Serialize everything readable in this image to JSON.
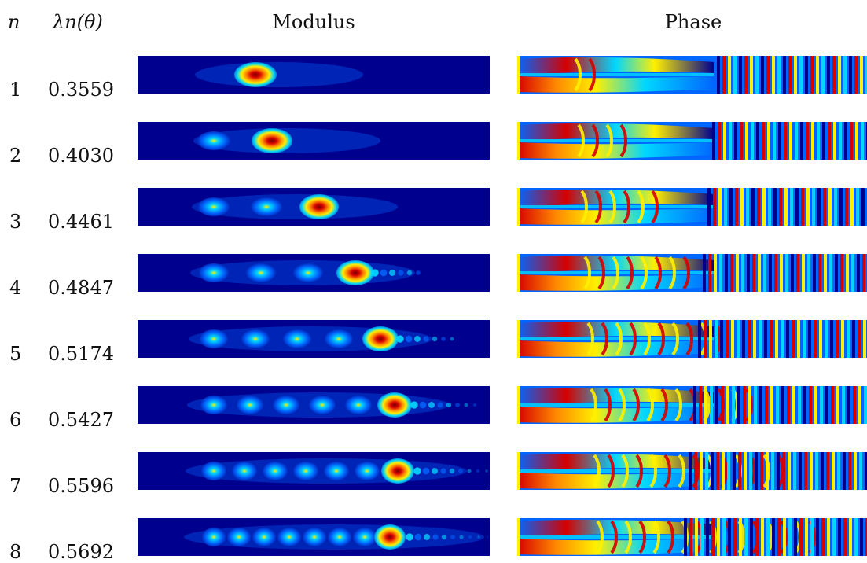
{
  "headers": {
    "n": "n",
    "lambda": "λn(θ)",
    "modulus": "Modulus",
    "phase": "Phase"
  },
  "rows": [
    {
      "n": "1",
      "lambda": "0.3559",
      "hot_lobes": 1
    },
    {
      "n": "2",
      "lambda": "0.4030",
      "hot_lobes": 2
    },
    {
      "n": "3",
      "lambda": "0.4461",
      "hot_lobes": 3
    },
    {
      "n": "4",
      "lambda": "0.4847",
      "hot_lobes": 4
    },
    {
      "n": "5",
      "lambda": "0.5174",
      "hot_lobes": 5
    },
    {
      "n": "6",
      "lambda": "0.5427",
      "hot_lobes": 6
    },
    {
      "n": "7",
      "lambda": "0.5596",
      "hot_lobes": 7
    },
    {
      "n": "8",
      "lambda": "0.5692",
      "hot_lobes": 8
    }
  ],
  "colors": {
    "background": "#ffffff",
    "deep_blue": "#00008f",
    "mid_blue": "#0066ff",
    "cyan": "#00d7ff",
    "yellow": "#ffef00",
    "orange": "#ff8a00",
    "red": "#d60000",
    "dark_red": "#7a0000"
  }
}
